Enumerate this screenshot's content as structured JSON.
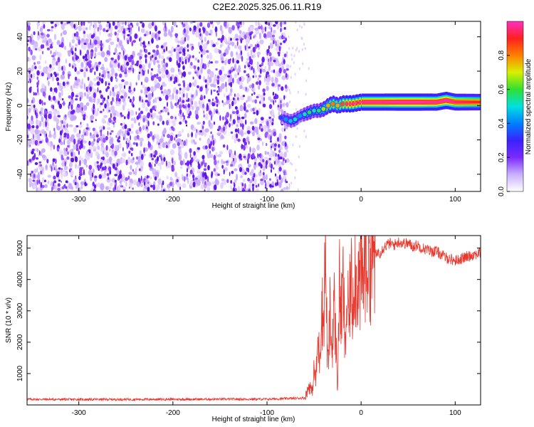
{
  "title": "C2E2.2025.325.06.11.R19",
  "chart_data": [
    {
      "type": "heatmap",
      "xlabel": "Height of straight line (km)",
      "ylabel": "Frequency (Hz)",
      "xlim": [
        -355,
        127
      ],
      "ylim": [
        -50,
        49
      ],
      "x_ticks": [
        -300,
        -200,
        -100,
        0,
        100
      ],
      "x_tick_labels": [
        "-300",
        "-200",
        "-100",
        "0",
        "100"
      ],
      "y_ticks": [
        -40,
        -20,
        0,
        20,
        40
      ],
      "y_tick_labels": [
        "-40",
        "-20",
        "0",
        "20",
        "40"
      ],
      "noise_region_x": [
        -355,
        -78
      ],
      "noise_region_level": 0.15,
      "signal_ridge": {
        "x": [
          -85,
          -80,
          -75,
          -70,
          -65,
          -60,
          -55,
          -50,
          -45,
          -40,
          -35,
          -30,
          -25,
          -20,
          -10,
          0,
          20,
          40,
          60,
          80,
          90,
          100,
          127
        ],
        "freq": [
          -7,
          -8,
          -9,
          -8,
          -6,
          -5,
          -4,
          -3,
          -3,
          -2,
          0,
          1,
          0,
          1,
          1,
          2,
          2,
          2,
          2,
          2,
          3,
          2,
          2
        ],
        "amp": [
          0.35,
          0.45,
          0.5,
          0.55,
          0.45,
          0.55,
          0.6,
          0.55,
          0.6,
          0.7,
          0.8,
          0.85,
          0.8,
          0.9,
          0.95,
          0.98,
          0.98,
          1.0,
          1.0,
          0.98,
          1.0,
          0.95,
          0.9
        ]
      },
      "colorbar": {
        "label": "Normalized spectral amplitude",
        "range": [
          0.0,
          1.0
        ],
        "ticks": [
          0.0,
          0.2,
          0.4,
          0.6,
          0.8
        ],
        "tick_labels": [
          "0.0",
          "0.2",
          "0.4",
          "0.6",
          "0.8"
        ],
        "colors": [
          "#ffffff",
          "#c9b0ff",
          "#7a2bff",
          "#3a22ff",
          "#0080ff",
          "#00e0e0",
          "#30e030",
          "#d8f000",
          "#ff8000",
          "#ff2020",
          "#ff30c0"
        ]
      }
    },
    {
      "type": "line",
      "xlabel": "Height of straight line (km)",
      "ylabel": "SNR (10 * v/v)",
      "xlim": [
        -355,
        127
      ],
      "ylim": [
        0,
        5400
      ],
      "x_ticks": [
        -300,
        -200,
        -100,
        0,
        100
      ],
      "x_tick_labels": [
        "-300",
        "-200",
        "-100",
        "0",
        "100"
      ],
      "y_ticks": [
        1000,
        2000,
        3000,
        4000,
        5000
      ],
      "y_tick_labels": [
        "1000",
        "2000",
        "3000",
        "4000",
        "5000"
      ],
      "color": "#e8392f",
      "series": [
        {
          "name": "SNR",
          "x": [
            -355,
            -300,
            -200,
            -100,
            -60,
            -57,
            -55,
            -52,
            -50,
            -48,
            -46,
            -44,
            -42,
            -40,
            -38,
            -36,
            -35,
            -33,
            -31,
            -29,
            -27,
            -25,
            -23,
            -21,
            -19,
            -17,
            -15,
            -13,
            -11,
            -9,
            -7,
            -5,
            -3,
            -1,
            0,
            2,
            4,
            6,
            8,
            10,
            12,
            14,
            16,
            18,
            20,
            22,
            25,
            30,
            35,
            40,
            45,
            50,
            55,
            60,
            65,
            70,
            75,
            80,
            85,
            90,
            95,
            100,
            105,
            110,
            115,
            120,
            127
          ],
          "y": [
            180,
            175,
            180,
            185,
            220,
            450,
            650,
            400,
            1100,
            800,
            2000,
            1500,
            3200,
            2500,
            5050,
            1800,
            1200,
            3000,
            1600,
            3300,
            2200,
            600,
            3800,
            2800,
            4000,
            1600,
            3400,
            2600,
            4200,
            3200,
            4600,
            3800,
            4300,
            3600,
            4200,
            3900,
            4700,
            4400,
            5000,
            4600,
            4700,
            4850,
            4750,
            4900,
            4850,
            4950,
            5050,
            5150,
            5100,
            5200,
            5150,
            5150,
            5050,
            5100,
            5000,
            4950,
            4900,
            4900,
            4800,
            4700,
            4650,
            4600,
            4650,
            4700,
            4750,
            4800,
            4850
          ]
        }
      ]
    }
  ]
}
